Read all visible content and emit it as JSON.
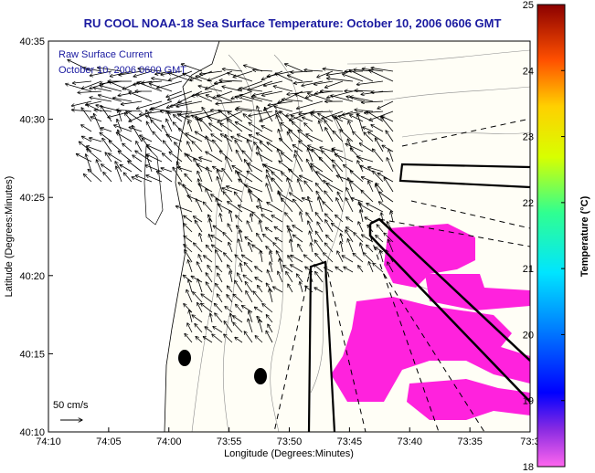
{
  "chart_data": {
    "type": "map",
    "title": "RU COOL  NOAA-18  Sea Surface Temperature:  October 10, 2006 0606 GMT",
    "xlabel": "Longitude (Degrees:Minutes)",
    "ylabel": "Latitude (Degrees:Minutes)",
    "x_ticks": [
      "74:10",
      "74:05",
      "74:00",
      "73:55",
      "73:50",
      "73:45",
      "73:40",
      "73:35",
      "73:3"
    ],
    "y_ticks": [
      "40:35",
      "40:30",
      "40:25",
      "40:20",
      "40:15",
      "40:10"
    ],
    "xlim_minutes_west": [
      70,
      30
    ],
    "ylim_minutes_north": [
      10,
      35
    ],
    "annotations": {
      "overlay_title": "Raw Surface Current",
      "overlay_time": "October 10, 2006 0600 GMT",
      "scale_label": "50 cm/s"
    },
    "colorbar": {
      "label": "Temperature (°C)",
      "ticks": [
        18,
        19,
        20,
        21,
        22,
        23,
        24,
        25
      ],
      "range": [
        18,
        25
      ],
      "colormap": "jet"
    },
    "sst_patch_color": "#ff22dd",
    "sst_patch_value_c": 18
  }
}
